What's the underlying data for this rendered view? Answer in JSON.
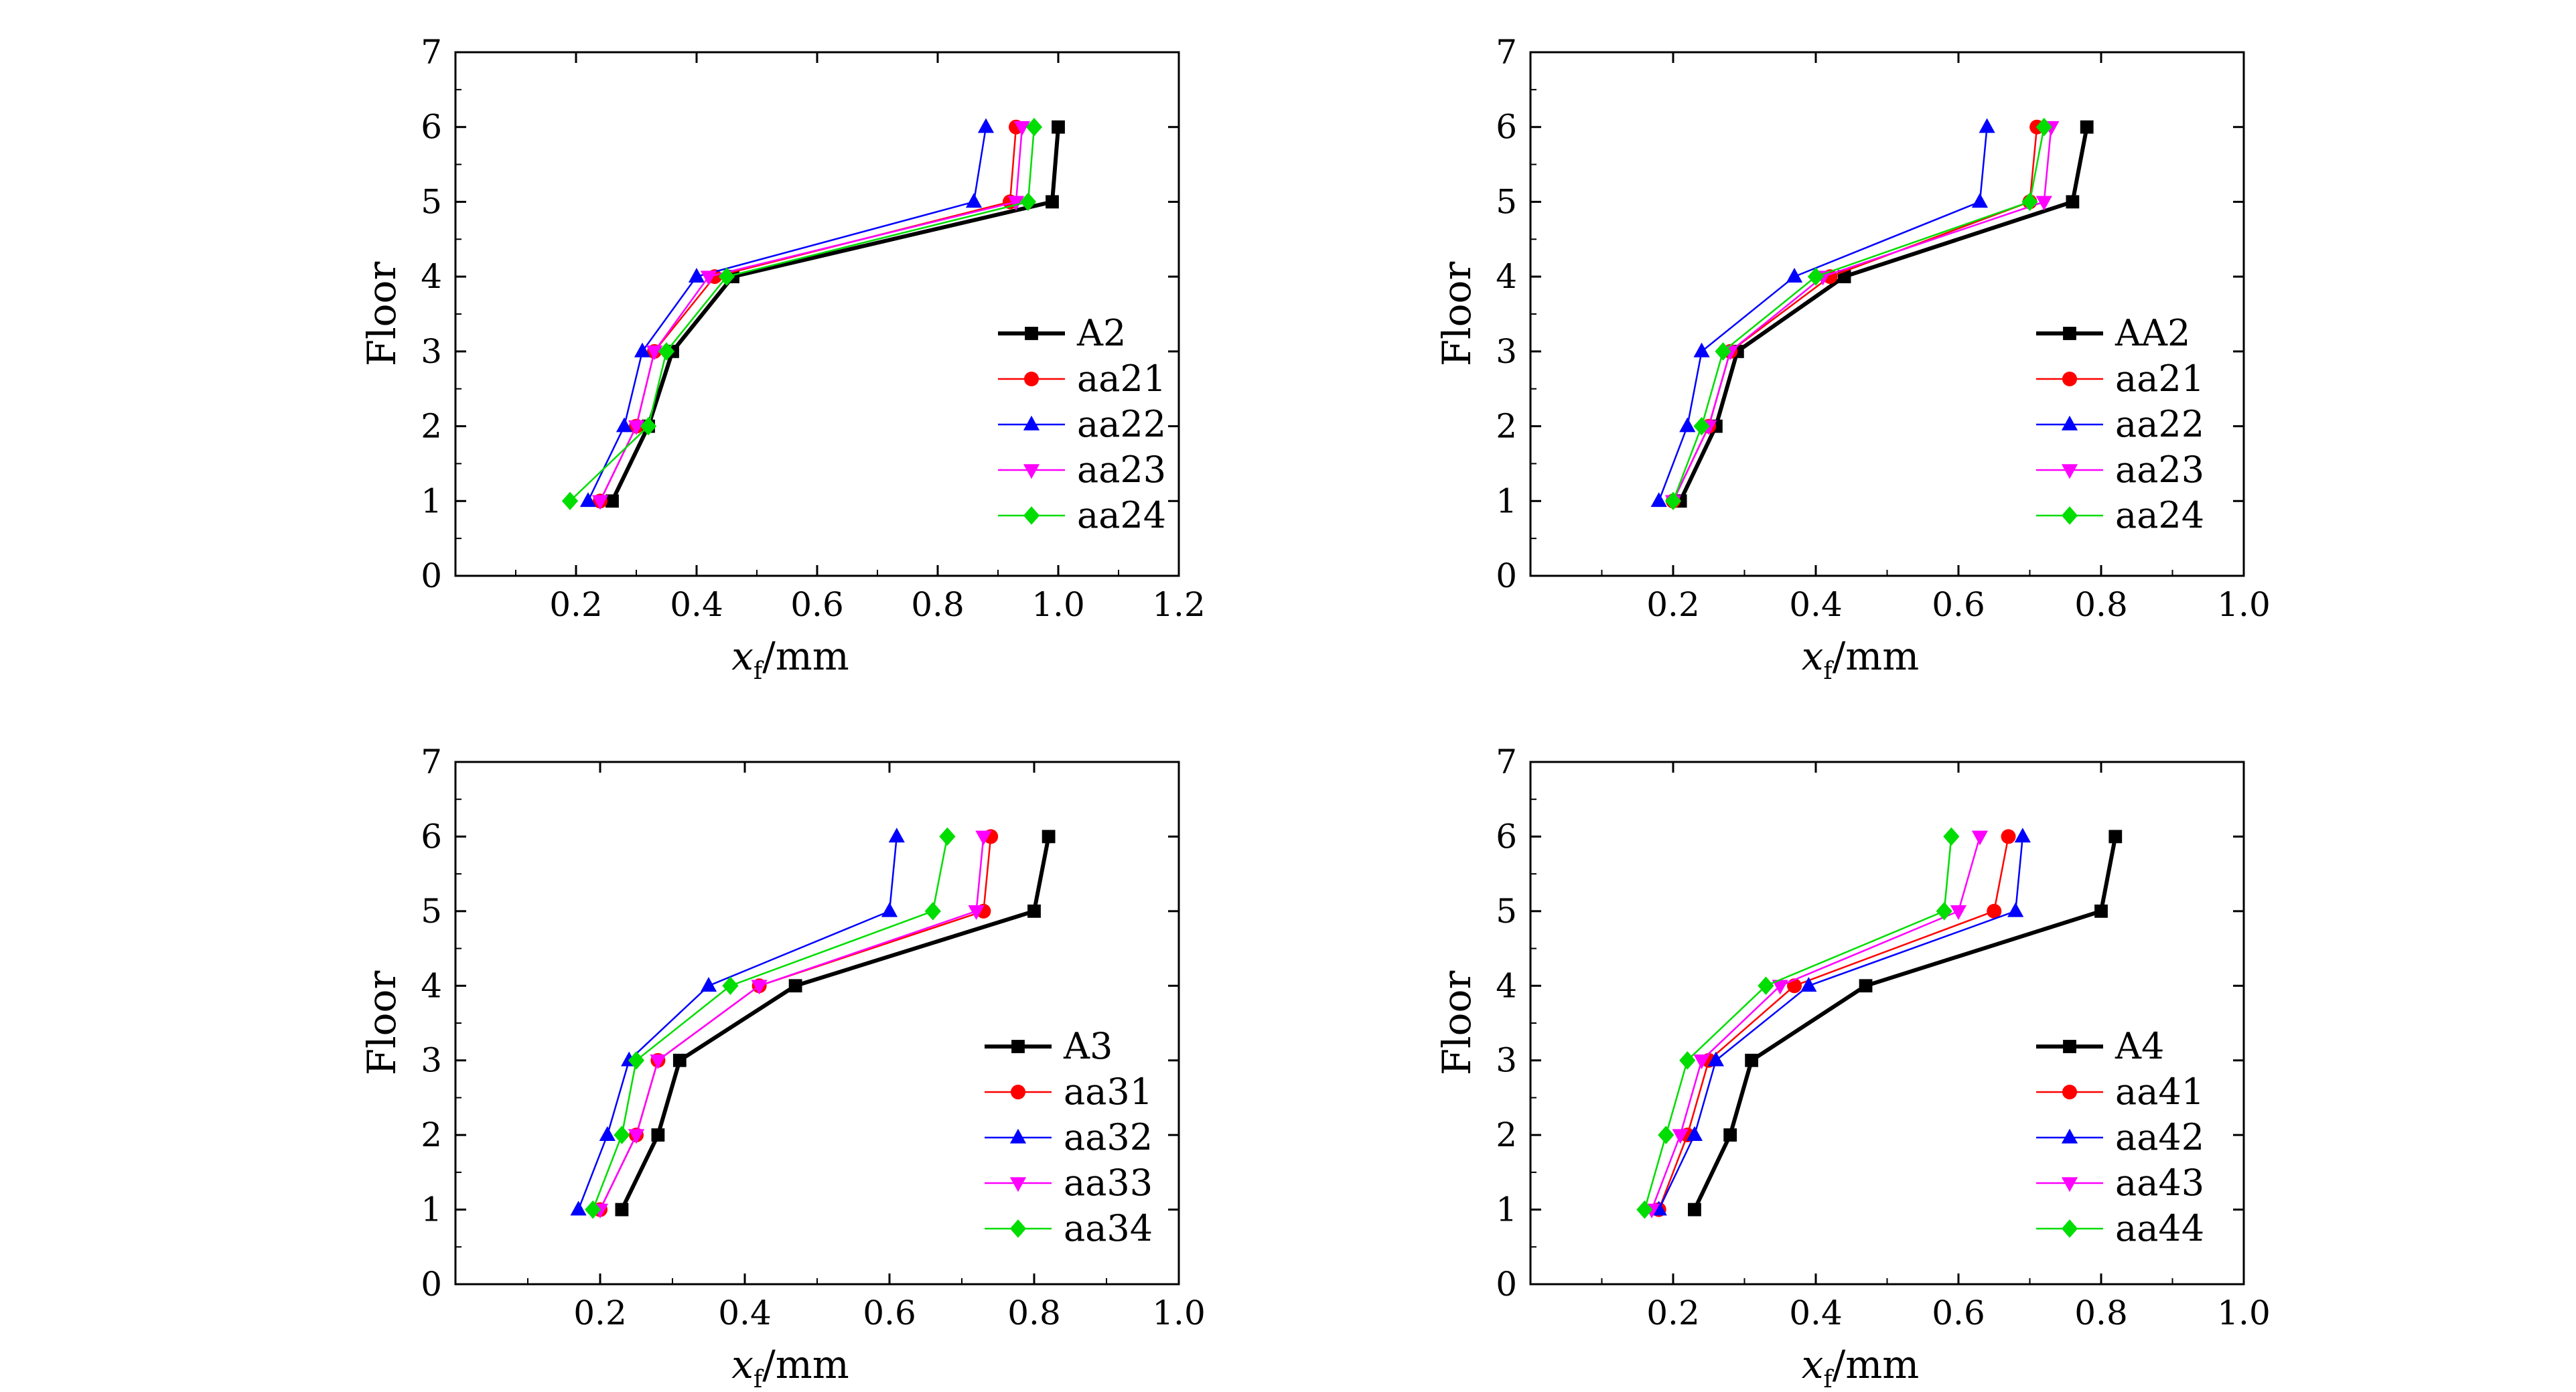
{
  "chart_data": [
    {
      "type": "line",
      "xlabel": "x",
      "xlabel_sub": "f",
      "xlabel_unit": "/mm",
      "ylabel": "Floor",
      "xlim": [
        0,
        1.2
      ],
      "ylim": [
        0,
        7
      ],
      "xticks": [
        0.2,
        0.4,
        0.6,
        0.8,
        1.0,
        1.2
      ],
      "xtick_labels": [
        "0.2",
        "0.4",
        "0.6",
        "0.8",
        "1.0",
        "1.2"
      ],
      "yticks": [
        0,
        1,
        2,
        3,
        4,
        5,
        6,
        7
      ],
      "ytick_labels": [
        "0",
        "1",
        "2",
        "3",
        "4",
        "5",
        "6",
        "7"
      ],
      "legend_position": "right",
      "series": [
        {
          "name": "A2",
          "color": "#000000",
          "marker": "square",
          "x": [
            0.26,
            0.32,
            0.36,
            0.46,
            0.99,
            1.0
          ],
          "y": [
            1,
            2,
            3,
            4,
            5,
            6
          ]
        },
        {
          "name": "aa21",
          "color": "#ff0000",
          "marker": "circle",
          "x": [
            0.24,
            0.3,
            0.33,
            0.43,
            0.92,
            0.93
          ],
          "y": [
            1,
            2,
            3,
            4,
            5,
            6
          ]
        },
        {
          "name": "aa22",
          "color": "#0000ff",
          "marker": "triangle-up",
          "x": [
            0.22,
            0.28,
            0.31,
            0.4,
            0.86,
            0.88
          ],
          "y": [
            1,
            2,
            3,
            4,
            5,
            6
          ]
        },
        {
          "name": "aa23",
          "color": "#ff00ff",
          "marker": "triangle-down",
          "x": [
            0.24,
            0.3,
            0.33,
            0.42,
            0.93,
            0.94
          ],
          "y": [
            1,
            2,
            3,
            4,
            5,
            6
          ]
        },
        {
          "name": "aa24",
          "color": "#00dd00",
          "marker": "diamond",
          "x": [
            0.19,
            0.32,
            0.35,
            0.45,
            0.95,
            0.96
          ],
          "y": [
            1,
            2,
            3,
            4,
            5,
            6
          ]
        }
      ]
    },
    {
      "type": "line",
      "xlabel": "x",
      "xlabel_sub": "f",
      "xlabel_unit": "/mm",
      "ylabel": "Floor",
      "xlim": [
        0,
        1.0
      ],
      "ylim": [
        0,
        7
      ],
      "xticks": [
        0.2,
        0.4,
        0.6,
        0.8,
        1.0
      ],
      "xtick_labels": [
        "0.2",
        "0.4",
        "0.6",
        "0.8",
        "1.0"
      ],
      "yticks": [
        0,
        1,
        2,
        3,
        4,
        5,
        6,
        7
      ],
      "ytick_labels": [
        "0",
        "1",
        "2",
        "3",
        "4",
        "5",
        "6",
        "7"
      ],
      "legend_position": "right",
      "series": [
        {
          "name": "AA2",
          "color": "#000000",
          "marker": "square",
          "x": [
            0.21,
            0.26,
            0.29,
            0.44,
            0.76,
            0.78
          ],
          "y": [
            1,
            2,
            3,
            4,
            5,
            6
          ]
        },
        {
          "name": "aa21",
          "color": "#ff0000",
          "marker": "circle",
          "x": [
            0.2,
            0.25,
            0.28,
            0.42,
            0.7,
            0.71
          ],
          "y": [
            1,
            2,
            3,
            4,
            5,
            6
          ]
        },
        {
          "name": "aa22",
          "color": "#0000ff",
          "marker": "triangle-up",
          "x": [
            0.18,
            0.22,
            0.24,
            0.37,
            0.63,
            0.64
          ],
          "y": [
            1,
            2,
            3,
            4,
            5,
            6
          ]
        },
        {
          "name": "aa23",
          "color": "#ff00ff",
          "marker": "triangle-down",
          "x": [
            0.2,
            0.25,
            0.28,
            0.41,
            0.72,
            0.73
          ],
          "y": [
            1,
            2,
            3,
            4,
            5,
            6
          ]
        },
        {
          "name": "aa24",
          "color": "#00dd00",
          "marker": "diamond",
          "x": [
            0.2,
            0.24,
            0.27,
            0.4,
            0.7,
            0.72
          ],
          "y": [
            1,
            2,
            3,
            4,
            5,
            6
          ]
        }
      ]
    },
    {
      "type": "line",
      "xlabel": "x",
      "xlabel_sub": "f",
      "xlabel_unit": "/mm",
      "ylabel": "Floor",
      "xlim": [
        0,
        1.0
      ],
      "ylim": [
        0,
        7
      ],
      "xticks": [
        0.2,
        0.4,
        0.6,
        0.8,
        1.0
      ],
      "xtick_labels": [
        "0.2",
        "0.4",
        "0.6",
        "0.8",
        "1.0"
      ],
      "yticks": [
        0,
        1,
        2,
        3,
        4,
        5,
        6,
        7
      ],
      "ytick_labels": [
        "0",
        "1",
        "2",
        "3",
        "4",
        "5",
        "6",
        "7"
      ],
      "legend_position": "right",
      "series": [
        {
          "name": "A3",
          "color": "#000000",
          "marker": "square",
          "x": [
            0.23,
            0.28,
            0.31,
            0.47,
            0.8,
            0.82
          ],
          "y": [
            1,
            2,
            3,
            4,
            5,
            6
          ]
        },
        {
          "name": "aa31",
          "color": "#ff0000",
          "marker": "circle",
          "x": [
            0.2,
            0.25,
            0.28,
            0.42,
            0.73,
            0.74
          ],
          "y": [
            1,
            2,
            3,
            4,
            5,
            6
          ]
        },
        {
          "name": "aa32",
          "color": "#0000ff",
          "marker": "triangle-up",
          "x": [
            0.17,
            0.21,
            0.24,
            0.35,
            0.6,
            0.61
          ],
          "y": [
            1,
            2,
            3,
            4,
            5,
            6
          ]
        },
        {
          "name": "aa33",
          "color": "#ff00ff",
          "marker": "triangle-down",
          "x": [
            0.2,
            0.25,
            0.28,
            0.42,
            0.72,
            0.73
          ],
          "y": [
            1,
            2,
            3,
            4,
            5,
            6
          ]
        },
        {
          "name": "aa34",
          "color": "#00dd00",
          "marker": "diamond",
          "x": [
            0.19,
            0.23,
            0.25,
            0.38,
            0.66,
            0.68
          ],
          "y": [
            1,
            2,
            3,
            4,
            5,
            6
          ]
        }
      ]
    },
    {
      "type": "line",
      "xlabel": "x",
      "xlabel_sub": "f",
      "xlabel_unit": "/mm",
      "ylabel": "Floor",
      "xlim": [
        0,
        1.0
      ],
      "ylim": [
        0,
        7
      ],
      "xticks": [
        0.2,
        0.4,
        0.6,
        0.8,
        1.0
      ],
      "xtick_labels": [
        "0.2",
        "0.4",
        "0.6",
        "0.8",
        "1.0"
      ],
      "yticks": [
        0,
        1,
        2,
        3,
        4,
        5,
        6,
        7
      ],
      "ytick_labels": [
        "0",
        "1",
        "2",
        "3",
        "4",
        "5",
        "6",
        "7"
      ],
      "legend_position": "right",
      "series": [
        {
          "name": "A4",
          "color": "#000000",
          "marker": "square",
          "x": [
            0.23,
            0.28,
            0.31,
            0.47,
            0.8,
            0.82
          ],
          "y": [
            1,
            2,
            3,
            4,
            5,
            6
          ]
        },
        {
          "name": "aa41",
          "color": "#ff0000",
          "marker": "circle",
          "x": [
            0.18,
            0.22,
            0.25,
            0.37,
            0.65,
            0.67
          ],
          "y": [
            1,
            2,
            3,
            4,
            5,
            6
          ]
        },
        {
          "name": "aa42",
          "color": "#0000ff",
          "marker": "triangle-up",
          "x": [
            0.18,
            0.23,
            0.26,
            0.39,
            0.68,
            0.69
          ],
          "y": [
            1,
            2,
            3,
            4,
            5,
            6
          ]
        },
        {
          "name": "aa43",
          "color": "#ff00ff",
          "marker": "triangle-down",
          "x": [
            0.17,
            0.21,
            0.24,
            0.35,
            0.6,
            0.63
          ],
          "y": [
            1,
            2,
            3,
            4,
            5,
            6
          ]
        },
        {
          "name": "aa44",
          "color": "#00dd00",
          "marker": "diamond",
          "x": [
            0.16,
            0.19,
            0.22,
            0.33,
            0.58,
            0.59
          ],
          "y": [
            1,
            2,
            3,
            4,
            5,
            6
          ]
        }
      ]
    }
  ]
}
